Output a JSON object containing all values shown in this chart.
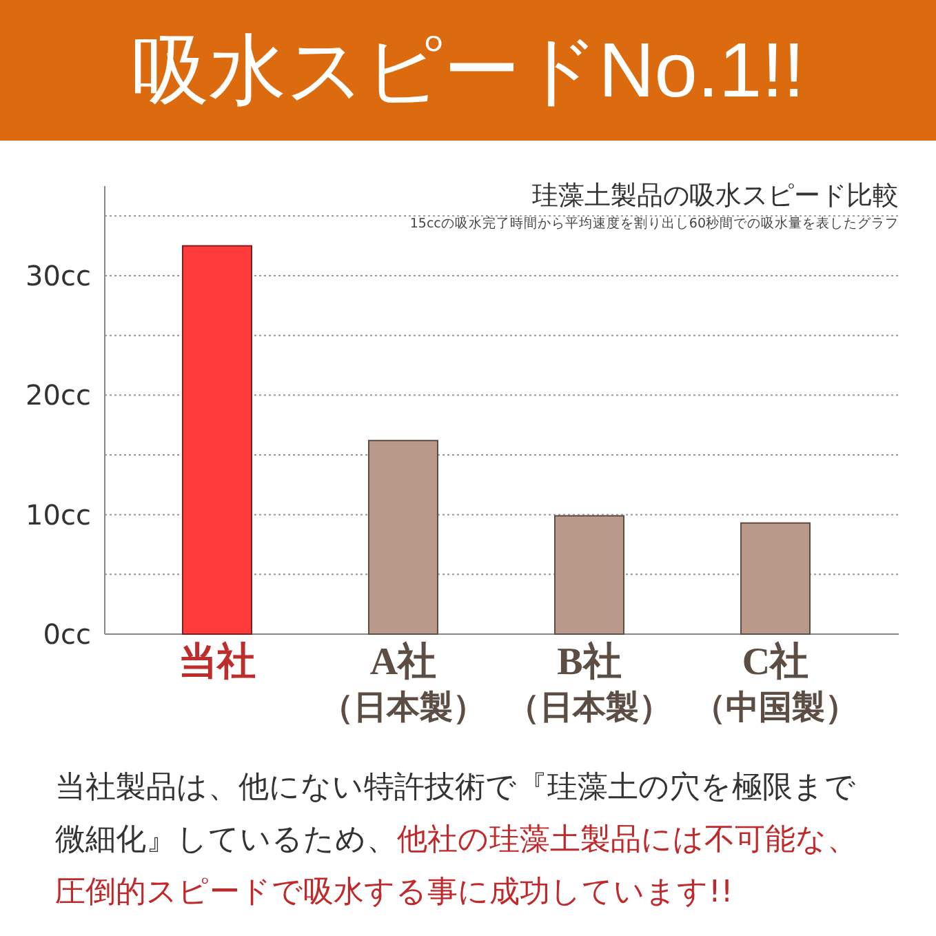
{
  "chart_data": {
    "type": "bar",
    "title": "吸水スピードNo.1!!",
    "subtitle": "珪藻土製品の吸水スピード比較",
    "annotations": [
      "15ccの吸水完了時間から平均速度を割り出し60秒間での吸水量を表したグラフ",
      "当社製品は、他にない特許技術で『珪藻土の穴を極限まで微細化』しているため、",
      "他社の珪藻土製品には不可能な、圧倒的スピードで吸水する事に成功しています!!"
    ],
    "categories": [
      "当社",
      "A社（日本製）",
      "B社（日本製）",
      "C社（中国製）"
    ],
    "values": [
      32.5,
      16.2,
      9.9,
      9.3
    ],
    "colors": [
      "#ff3b3b",
      "#b8998a",
      "#b8998a",
      "#b8998a"
    ],
    "ylim": [
      0,
      37.5
    ],
    "yticks": [
      {
        "value": 0,
        "label": "0cc"
      },
      {
        "value": 5,
        "label": null
      },
      {
        "value": 10,
        "label": "10cc"
      },
      {
        "value": 15,
        "label": null
      },
      {
        "value": 20,
        "label": "20cc"
      },
      {
        "value": 25,
        "label": null
      },
      {
        "value": 30,
        "label": "30cc"
      },
      {
        "value": 35,
        "label": null
      }
    ],
    "grid": "y"
  }
}
